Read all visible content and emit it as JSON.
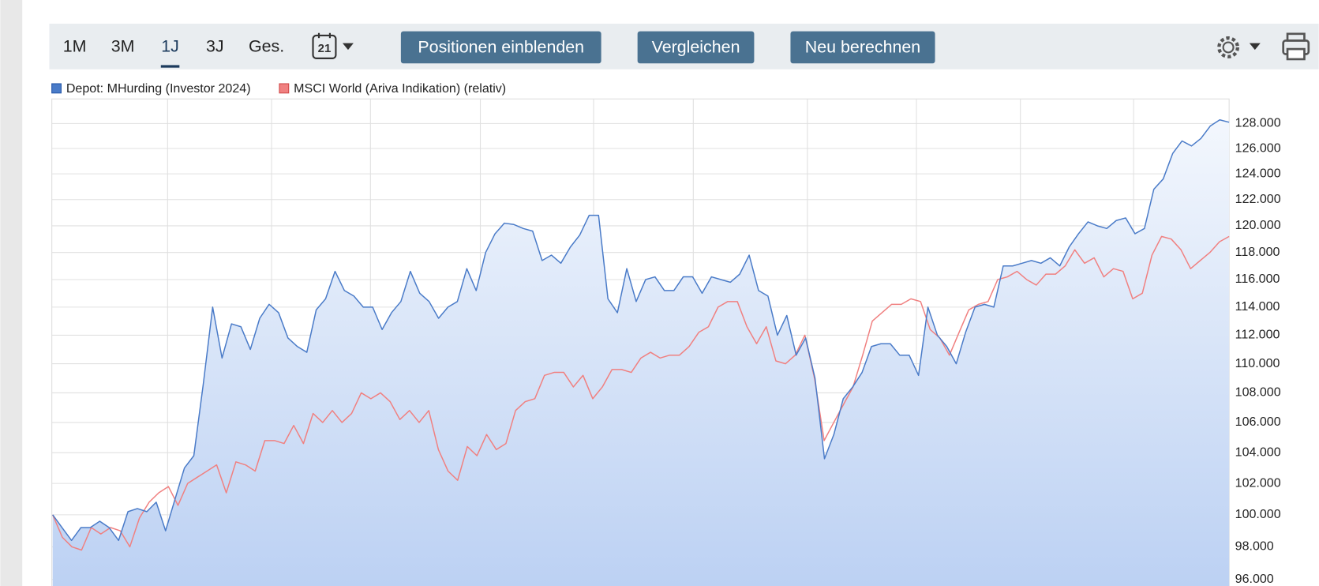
{
  "toolbar": {
    "periods": [
      "1M",
      "3M",
      "1J",
      "3J",
      "Ges."
    ],
    "calendar_day": "21",
    "buttons": [
      "Positionen einblenden",
      "Vergleichen",
      "Neu berechnen"
    ]
  },
  "chart_data": {
    "type": "line",
    "log_scale": true,
    "grid": true,
    "legend": "top-left",
    "ylim": [
      95,
      130
    ],
    "yticks": [
      {
        "value": 96,
        "label": "96.000"
      },
      {
        "value": 98,
        "label": "98.000"
      },
      {
        "value": 100,
        "label": "100.000"
      },
      {
        "value": 102,
        "label": "102.000"
      },
      {
        "value": 104,
        "label": "104.000"
      },
      {
        "value": 106,
        "label": "106.000"
      },
      {
        "value": 108,
        "label": "108.000"
      },
      {
        "value": 110,
        "label": "110.000"
      },
      {
        "value": 112,
        "label": "112.000"
      },
      {
        "value": 114,
        "label": "114.000"
      },
      {
        "value": 116,
        "label": "116.000"
      },
      {
        "value": 118,
        "label": "118.000"
      },
      {
        "value": 120,
        "label": "120.000"
      },
      {
        "value": 122,
        "label": "122.000"
      },
      {
        "value": 124,
        "label": "124.000"
      },
      {
        "value": 126,
        "label": "126.000"
      },
      {
        "value": 128,
        "label": "128.000"
      }
    ],
    "series": [
      {
        "name": "Depot: MHurding (Investor 2024)",
        "color": "#4a7bc8",
        "values": [
          100,
          99.2,
          98.4,
          99.2,
          99.2,
          99.6,
          99.2,
          98.4,
          100.2,
          100.4,
          100.2,
          100.8,
          99.0,
          101.0,
          103,
          103.8,
          108.6,
          114,
          110.4,
          112.8,
          112.6,
          111,
          113.2,
          114.2,
          113.6,
          111.8,
          111.2,
          110.8,
          113.8,
          114.6,
          116.6,
          115.2,
          114.8,
          114,
          114,
          112.4,
          113.6,
          114.4,
          116.6,
          115,
          114.4,
          113.2,
          114,
          114.4,
          116.8,
          115.2,
          118,
          119.4,
          120.2,
          120.1,
          119.8,
          119.6,
          117.4,
          117.8,
          117.2,
          118.4,
          119.3,
          120.8,
          120.8,
          114.6,
          113.6,
          116.8,
          114.4,
          116,
          116.2,
          115.2,
          115.2,
          116.2,
          116.2,
          115,
          116.2,
          116,
          115.8,
          116.4,
          117.8,
          115.2,
          114.8,
          112,
          113.4,
          110.6,
          111.8,
          109,
          103.6,
          105.2,
          107.6,
          108.4,
          109.4,
          111.2,
          111.4,
          111.4,
          110.6,
          110.6,
          109.2,
          114,
          112,
          111.2,
          110,
          112.2,
          114,
          114.2,
          114,
          117,
          117,
          117.2,
          117.4,
          117.2,
          117.6,
          117,
          118.4,
          119.4,
          120.3,
          120,
          119.8,
          120.4,
          120.6,
          119.4,
          119.8,
          122.8,
          123.6,
          125.6,
          126.6,
          126.2,
          126.8,
          127.8,
          128.3,
          128.1
        ]
      },
      {
        "name": "MSCI World (Ariva Indikation) (relativ)",
        "color": "#f08080",
        "values": [
          100,
          98.6,
          98,
          97.8,
          99.2,
          98.8,
          99.2,
          99,
          98,
          99.8,
          100.8,
          101.4,
          101.8,
          100.6,
          102,
          102.4,
          102.8,
          103.2,
          101.4,
          103.4,
          103.2,
          102.8,
          104.8,
          104.8,
          104.6,
          105.8,
          104.6,
          106.6,
          106,
          106.8,
          106,
          106.6,
          108,
          107.6,
          108,
          107.4,
          106.2,
          106.8,
          106,
          106.8,
          104.2,
          102.8,
          102.2,
          104.4,
          103.8,
          105.2,
          104.2,
          104.6,
          106.8,
          107.4,
          107.6,
          109.2,
          109.4,
          109.4,
          108.4,
          109.2,
          107.6,
          108.4,
          109.6,
          109.6,
          109.4,
          110.4,
          110.8,
          110.4,
          110.6,
          110.6,
          111.2,
          112.2,
          112.6,
          114,
          114.4,
          114.4,
          112.6,
          111.4,
          112.6,
          110.2,
          110,
          110.6,
          112,
          109,
          104.8,
          106,
          107.2,
          108.4,
          110.6,
          113,
          113.6,
          114.2,
          114.2,
          114.6,
          114.4,
          112.4,
          111.8,
          110.6,
          112.2,
          113.8,
          114.2,
          114.4,
          116,
          116.2,
          116.6,
          116,
          115.6,
          116.4,
          116.4,
          117,
          118.2,
          117.2,
          117.6,
          116.2,
          116.8,
          116.6,
          114.6,
          115,
          117.8,
          119.2,
          119,
          118.2,
          116.8,
          117.4,
          118,
          118.8,
          119.2
        ]
      }
    ]
  }
}
